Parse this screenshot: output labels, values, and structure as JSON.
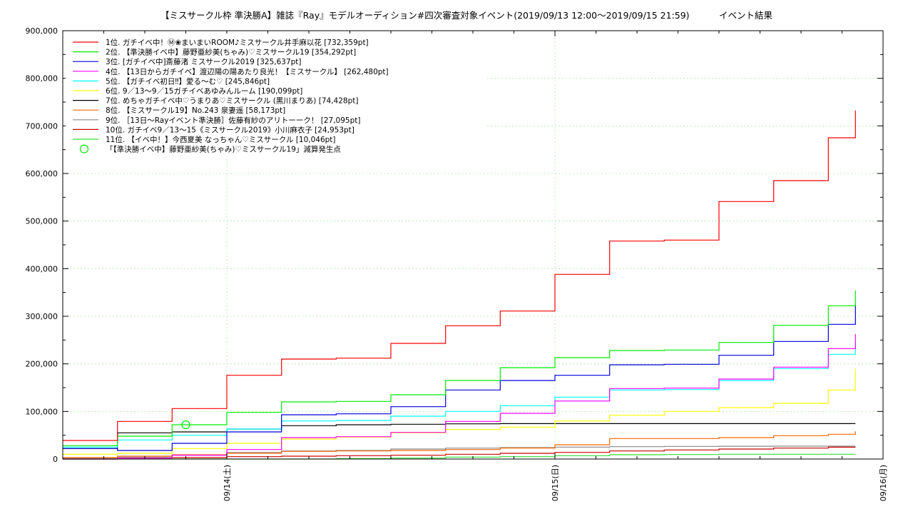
{
  "chart_data": {
    "type": "line",
    "title": "【ミスサークル枠 準決勝A】雑誌『Ray』モデルオーディション#四次審査対象イベント(2019/09/13 12:00～2019/09/15 21:59)",
    "subtitle": "イベント結果",
    "x_ticks": [
      "09/14(土)",
      "09/15(日)",
      "09/16(月)"
    ],
    "y_ticks": [
      "0",
      "100,000",
      "200,000",
      "300,000",
      "400,000",
      "500,000",
      "600,000",
      "700,000",
      "800,000",
      "900,000"
    ],
    "ylim": [
      0,
      900000
    ],
    "xlim": [
      "2019-09-13 12:00",
      "2019-09-16 00:00"
    ],
    "grid": true,
    "legend_position": "top-left",
    "x": [
      "2019-09-13 12:00",
      "2019-09-13 16:00",
      "2019-09-13 20:00",
      "2019-09-14 00:00",
      "2019-09-14 04:00",
      "2019-09-14 08:00",
      "2019-09-14 12:00",
      "2019-09-14 16:00",
      "2019-09-14 20:00",
      "2019-09-15 00:00",
      "2019-09-15 04:00",
      "2019-09-15 08:00",
      "2019-09-15 12:00",
      "2019-09-15 16:00",
      "2019-09-15 20:00",
      "2019-09-15 21:59"
    ],
    "series": [
      {
        "name": "1位. ガチイベ中！Ⓜ❀まいまいROOM♪ミスサークル井手麻以花 [732,359pt]",
        "color": "#ff0000",
        "values": [
          39000,
          79000,
          106000,
          176000,
          210000,
          212000,
          243000,
          280000,
          311000,
          388000,
          458000,
          460000,
          541000,
          585000,
          675000,
          732359
        ]
      },
      {
        "name": "2位. 【準決勝イベ中】藤野亜紗美(ちゃみ)♡ミスサークル19 [354,292pt]",
        "color": "#00ee00",
        "values": [
          28000,
          48000,
          72000,
          98000,
          120000,
          121000,
          135000,
          165000,
          192000,
          213000,
          228000,
          229000,
          245000,
          281000,
          322000,
          354292
        ]
      },
      {
        "name": "3位. [ガチイベ中]斎藤渚 ミスサークル2019 [325,637pt]",
        "color": "#0000dd",
        "values": [
          22000,
          18000,
          33000,
          57000,
          93000,
          95000,
          110000,
          145000,
          165000,
          176000,
          198000,
          199000,
          218000,
          247000,
          283000,
          325637
        ]
      },
      {
        "name": "4位. 【13日からガチイベ】渡辺陽の陽あたり良光！【ミスサークル】 [262,480pt]",
        "color": "#ff00ff",
        "values": [
          0,
          2000,
          8000,
          20000,
          45000,
          47000,
          56000,
          79000,
          96000,
          122000,
          148000,
          149000,
          168000,
          193000,
          232000,
          262480
        ]
      },
      {
        "name": "5位. 【ガチイベ初日‼︎】愛る〜む♡ [245,846pt]",
        "color": "#00ffff",
        "values": [
          25000,
          40000,
          50000,
          63000,
          80000,
          81000,
          90000,
          100000,
          112000,
          130000,
          145000,
          146000,
          165000,
          190000,
          220000,
          245846
        ]
      },
      {
        "name": "6位. 9／13〜9／15ガチイベあゆみんルーム [190,099pt]",
        "color": "#ffff00",
        "values": [
          10000,
          12000,
          22000,
          33000,
          42000,
          46000,
          55000,
          62000,
          67000,
          80000,
          92000,
          100000,
          108000,
          117000,
          145000,
          190099
        ]
      },
      {
        "name": "7位. めちゃガチイベ中♡うまりあ♡ミスサークル (黒川まりあ) [74,428pt]",
        "color": "#000000",
        "values": [
          22000,
          55000,
          57000,
          63000,
          70000,
          72000,
          73000,
          74000,
          74428,
          74428,
          74428,
          74428,
          74428,
          74428,
          74428,
          74428
        ]
      },
      {
        "name": "8位. 【ミスサークル19】No.243 泉妻遥 [58,173pt]",
        "color": "#ff6600",
        "values": [
          3000,
          6000,
          9000,
          12000,
          16000,
          17000,
          18000,
          20000,
          23000,
          30000,
          43000,
          43000,
          45000,
          49000,
          52000,
          58173
        ]
      },
      {
        "name": "9位. ［13日〜Rayイベント準決勝］佐藤有紗のアリトーーク！ [27,095pt]",
        "color": "#888888",
        "values": [
          2000,
          4000,
          8000,
          14000,
          17000,
          18000,
          21000,
          23000,
          24000,
          25000,
          26000,
          26500,
          26800,
          27000,
          27095,
          27095
        ]
      },
      {
        "name": "10位. ガチイベ9／13〜15《ミスサークル2019》小川麻衣子 [24,953pt]",
        "color": "#cc0000",
        "values": [
          0,
          2000,
          3000,
          5000,
          6000,
          7000,
          8000,
          10000,
          12000,
          14000,
          17000,
          19000,
          21000,
          23000,
          24953,
          24953
        ]
      },
      {
        "name": "11位. 【イベ中！】今西夏美 なっちゃん♡ミスサークル [10,046pt]",
        "color": "#33dd33",
        "values": [
          0,
          0,
          0,
          0,
          0,
          1000,
          2000,
          4000,
          5000,
          7000,
          9000,
          9500,
          10000,
          10046,
          10046,
          10046
        ]
      }
    ],
    "annotation": {
      "label": "「【準決勝イベ中】藤野亜紗美(ちゃみ)♡ミスサークル19」減算発生点",
      "color": "#00ee00",
      "x": "2019-09-13 21:00",
      "y": 72000
    }
  }
}
